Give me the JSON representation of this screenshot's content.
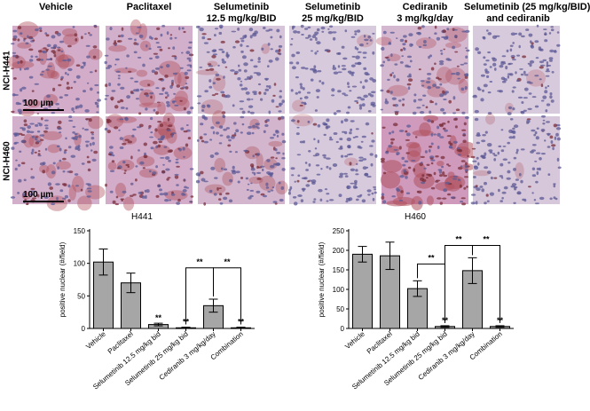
{
  "figure": {
    "columns": [
      {
        "line1": "Vehicle",
        "line2": ""
      },
      {
        "line1": "Paclitaxel",
        "line2": ""
      },
      {
        "line1": "Selumetinib",
        "line2": "12.5 mg/kg/BID"
      },
      {
        "line1": "Selumetinib",
        "line2": "25 mg/kg/BID"
      },
      {
        "line1": "Cediranib",
        "line2": "3 mg/kg/day"
      },
      {
        "line1": "Selumetinib (25 mg/kg/BID)",
        "line2": "and cediranib"
      }
    ],
    "rows": [
      "NCI-H441",
      "NCI-H460"
    ],
    "scale_bar": "100 µm",
    "stain_intensity": {
      "NCI-H441": [
        0.55,
        0.5,
        0.15,
        0.05,
        0.35,
        0.05
      ],
      "NCI-H460": [
        0.5,
        0.55,
        0.4,
        0.05,
        0.85,
        0.1
      ]
    },
    "colors": {
      "stain": "#b0525e",
      "counterstain": "#8a86b8",
      "background": "#d9d2df",
      "bar_fill": "#a6a6a6"
    }
  },
  "chart_data": [
    {
      "type": "bar",
      "title": "H441",
      "ylabel": "positive nuclear (#/field)",
      "categories": [
        "Vehicle",
        "Paclitaxel",
        "Selumetinib 12.5 mg/kg bid",
        "Selumetinib 25 mg/kg bid",
        "Cediranib 3 mg/kg/day",
        "Combination"
      ],
      "values": [
        102,
        70,
        6,
        1,
        35,
        1
      ],
      "errors": [
        20,
        15,
        2,
        1,
        10,
        1
      ],
      "annotations": [
        "",
        "",
        "**",
        "**",
        "",
        "**"
      ],
      "ylim": [
        0,
        150
      ],
      "yticks": [
        0,
        50,
        100,
        150
      ],
      "brackets": [
        {
          "from": 3,
          "to": 4,
          "label": "**"
        },
        {
          "from": 4,
          "to": 5,
          "label": "**"
        }
      ]
    },
    {
      "type": "bar",
      "title": "H460",
      "ylabel": "positive nuclear (#/field)",
      "categories": [
        "Vehicle",
        "Paclitaxel",
        "Selumetinib 12.5 mg/kg bid",
        "Selumetinib 25 mg/kg bid",
        "Cediranib 3 mg/kg/day",
        "Combination"
      ],
      "values": [
        190,
        186,
        102,
        5,
        148,
        5
      ],
      "errors": [
        20,
        35,
        20,
        2,
        33,
        2
      ],
      "annotations": [
        "",
        "",
        "",
        "**",
        "",
        "**"
      ],
      "ylim": [
        0,
        250
      ],
      "yticks": [
        0,
        50,
        100,
        150,
        200,
        250
      ],
      "brackets": [
        {
          "from": 2,
          "to": 3,
          "label": "**"
        },
        {
          "from": 3,
          "to": 4,
          "label": "**"
        },
        {
          "from": 4,
          "to": 5,
          "label": "**"
        }
      ]
    }
  ]
}
